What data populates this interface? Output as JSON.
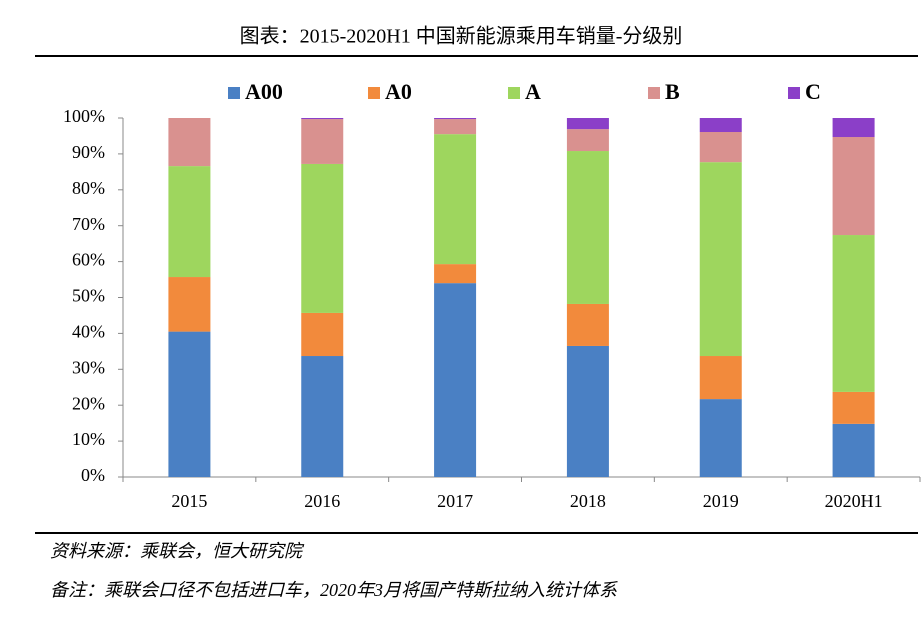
{
  "chart_data": {
    "type": "stacked-bar",
    "title": "图表：2015-2020H1 中国新能源乘用车销量-分级别",
    "categories": [
      "2015",
      "2016",
      "2017",
      "2018",
      "2019",
      "2020H1"
    ],
    "series": [
      {
        "name": "A00",
        "color": "#4a80c4",
        "values": [
          40.5,
          33.7,
          54.0,
          36.5,
          21.7,
          14.8
        ]
      },
      {
        "name": "A0",
        "color": "#f28a3c",
        "values": [
          15.2,
          12.0,
          5.3,
          11.7,
          12.0,
          8.9
        ]
      },
      {
        "name": "A",
        "color": "#9ed65e",
        "values": [
          30.9,
          41.5,
          36.2,
          42.6,
          54.0,
          43.7
        ]
      },
      {
        "name": "B",
        "color": "#d9918f",
        "values": [
          13.4,
          12.5,
          4.2,
          6.1,
          8.4,
          27.3
        ]
      },
      {
        "name": "C",
        "color": "#8b3fc8",
        "values": [
          0,
          0.3,
          0.3,
          3.1,
          3.9,
          5.3
        ]
      }
    ],
    "ylim": [
      0,
      100
    ],
    "yticks": [
      {
        "value": 0,
        "label": "0%"
      },
      {
        "value": 10,
        "label": "10%"
      },
      {
        "value": 20,
        "label": "20%"
      },
      {
        "value": 30,
        "label": "30%"
      },
      {
        "value": 40,
        "label": "40%"
      },
      {
        "value": 50,
        "label": "50%"
      },
      {
        "value": 60,
        "label": "60%"
      },
      {
        "value": 70,
        "label": "70%"
      },
      {
        "value": 80,
        "label": "80%"
      },
      {
        "value": 90,
        "label": "90%"
      },
      {
        "value": 100,
        "label": "100%"
      }
    ],
    "legend": "top",
    "footnotes": [
      "资料来源：乘联会，恒大研究院",
      "备注：乘联会口径不包括进口车，2020年3月将国产特斯拉纳入统计体系"
    ]
  }
}
